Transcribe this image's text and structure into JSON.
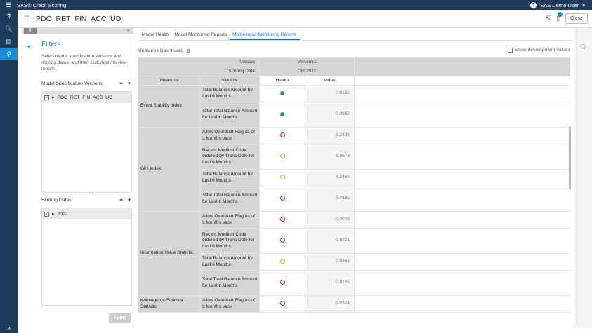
{
  "app": {
    "title": "SAS® Credit Scoring",
    "user": "SAS Demo User"
  },
  "header": {
    "page_title": "PDO_RET_FIN_ACC_UD",
    "close_label": "Close",
    "notification_count": "1"
  },
  "filters": {
    "title": "Filters",
    "description": "Select model specification versions and scoring dates, and then click Apply to view reports.",
    "spec_section": {
      "title": "Model Specification Versions",
      "items": [
        "PDO_RET_FIN_ACC_UD"
      ]
    },
    "dates_section": {
      "title": "Scoring Dates",
      "items": [
        "2012"
      ]
    },
    "apply_label": "Apply"
  },
  "tabs": [
    "Model Health",
    "Model-Monitoring Reports",
    "Model-Input-Monitoring Reports"
  ],
  "dashboard": {
    "title": "Measures Dashboard",
    "show_dev_label": "Show development values"
  },
  "table": {
    "version_label": "Version",
    "version_value": "Version 1",
    "date_label": "Scoring Date",
    "date_value": "Oct 2012",
    "col_measure": "Measure",
    "col_variable": "Variable",
    "col_health": "Health",
    "col_value": "Value",
    "groups": [
      {
        "measure": "Event Stability Index",
        "rows": [
          {
            "variable": "Total Balance Amount for Last 6 Months",
            "health": "green",
            "value": "0.0155"
          },
          {
            "variable": "Total Total Balance Amount for Last 6 Months",
            "health": "green",
            "value": "0.0052"
          }
        ]
      },
      {
        "measure": "Gini Index",
        "rows": [
          {
            "variable": "Allow Overdraft Flag as of 3 Months back",
            "health": "red",
            "value": "3.2436"
          },
          {
            "variable": "Recent Medium Code ordered by Trans Date for Last 6 Months",
            "health": "yellow",
            "value": "6.9873"
          },
          {
            "variable": "Total Balance Amount for Last 6 Months",
            "health": "yellow",
            "value": "8.2454"
          },
          {
            "variable": "Total Total Balance Amount for Last 6 Months",
            "health": "red",
            "value": "5.4835"
          }
        ]
      },
      {
        "measure": "Information Value Statistic",
        "rows": [
          {
            "variable": "Allow Overdraft Flag as of 3 Months back",
            "health": "red",
            "value": "0.0042"
          },
          {
            "variable": "Recent Medium Code ordered by Trans Date for Last 6 Months",
            "health": "red",
            "value": "0.0221"
          },
          {
            "variable": "Total Balance Amount for Last 6 Months",
            "health": "yellow",
            "value": "0.0351"
          },
          {
            "variable": "Total Total Balance Amount for Last 6 Months",
            "health": "red",
            "value": "0.0126"
          }
        ]
      },
      {
        "measure": "Kolmogorov-Smirnov Statistic",
        "rows": [
          {
            "variable": "Allow Overdraft Flag as of 3 Months back",
            "health": "red",
            "value": "0.0324"
          }
        ]
      }
    ]
  },
  "colors": {
    "nav": "#1f3a5a",
    "accent": "#1c8ad6",
    "green": "#27a24a",
    "red": "#e02020",
    "yellow": "#f0a020"
  }
}
